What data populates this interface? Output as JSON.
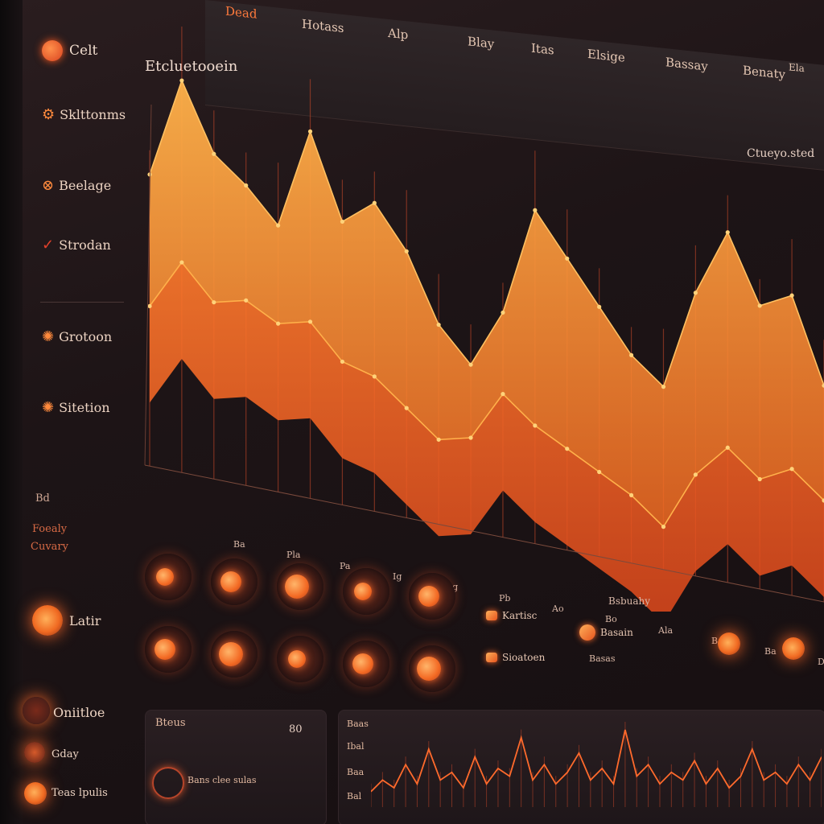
{
  "colors": {
    "accent": "#ff7a3c",
    "accent_dark": "#d9431f",
    "area_fill": "#f26a22",
    "area_light": "#ffa24a",
    "background": "#1d1416"
  },
  "tabs": [
    {
      "label": "Dead"
    },
    {
      "label": "Hotass"
    },
    {
      "label": "Alp"
    },
    {
      "label": "Blay"
    },
    {
      "label": "Itas"
    },
    {
      "label": "Elsige"
    },
    {
      "label": "Bassay"
    },
    {
      "label": "Benaty"
    },
    {
      "label": "Ela"
    }
  ],
  "sidebar": {
    "brand": "Celt",
    "items": [
      {
        "label": "Sklttonms",
        "icon": "gear-icon"
      },
      {
        "label": "Beelage",
        "icon": "circle-link-icon"
      },
      {
        "label": "Strodan",
        "icon": "check-icon"
      },
      {
        "label": "Grotoon",
        "icon": "cluster-icon"
      },
      {
        "label": "Sitetion",
        "icon": "cluster-icon"
      }
    ],
    "small_code": "Bd",
    "section_lines": [
      "Foealy",
      "Cuvary"
    ],
    "orb_label": "Latir",
    "bottom_items": [
      {
        "label": "Oniitloe"
      },
      {
        "label": "Gday"
      },
      {
        "label": "Teas lpulis"
      }
    ]
  },
  "chart": {
    "title": "Etcluetooein",
    "note": "Ctueyo.sted",
    "x_ticks": [
      "Ba",
      "Pla",
      "Pa",
      "Ig",
      "Bg",
      "Pb",
      "Ao",
      "Bo",
      "Ala",
      "Ba",
      "Ba",
      "Do"
    ],
    "footer_label": "Bsbuahy"
  },
  "chart_data": {
    "type": "area",
    "series": [
      {
        "values": [
          62,
          86,
          70,
          64,
          56,
          80,
          60,
          66,
          56,
          40,
          32,
          46,
          72,
          62,
          52,
          42,
          36,
          60,
          76,
          60,
          64,
          44
        ]
      },
      {
        "values": [
          44,
          56,
          48,
          50,
          46,
          48,
          40,
          38,
          32,
          26,
          28,
          40,
          34,
          30,
          26,
          22,
          16,
          30,
          38,
          32,
          36,
          30
        ]
      }
    ]
  },
  "orbs": {
    "row1": [
      "",
      "",
      "",
      "",
      ""
    ],
    "row2": [
      "",
      "",
      "",
      "",
      ""
    ]
  },
  "chips": [
    {
      "label": "Kartisc"
    },
    {
      "label": "Sioatoen"
    },
    {
      "label": "Basain"
    }
  ],
  "chip_caption": "Basas",
  "right_orbs": [
    {
      "caption": ""
    },
    {
      "caption": ""
    },
    {
      "caption": ""
    },
    {
      "caption": ""
    }
  ],
  "panels": {
    "left": {
      "title": "Bteus",
      "value": "80",
      "row_text": "Bans clee sulas"
    },
    "right": {
      "labels": [
        "Baas",
        "Ibal",
        "Baa",
        "Bal"
      ]
    }
  },
  "spark_data": [
    8,
    14,
    10,
    22,
    12,
    30,
    14,
    18,
    10,
    26,
    12,
    20,
    16,
    36,
    14,
    22,
    12,
    18,
    28,
    14,
    20,
    12,
    40,
    16,
    22,
    12,
    18,
    14,
    24,
    12,
    20,
    10,
    16,
    30,
    14,
    18,
    12,
    22,
    14,
    26
  ]
}
